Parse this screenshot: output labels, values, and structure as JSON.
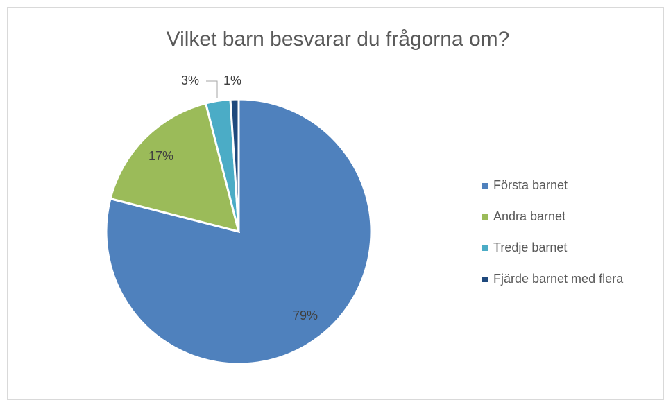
{
  "chart_data": {
    "type": "pie",
    "title": "Vilket barn besvarar du frågorna om?",
    "categories": [
      "Första barnet",
      "Andra barnet",
      "Tredje barnet",
      "Fjärde barnet med flera"
    ],
    "values": [
      79,
      17,
      3,
      1
    ],
    "value_labels": [
      "79%",
      "17%",
      "3%",
      "1%"
    ],
    "colors": [
      "#4f81bd",
      "#9bbb59",
      "#4bacc6",
      "#1f497d"
    ],
    "legend": "right"
  }
}
